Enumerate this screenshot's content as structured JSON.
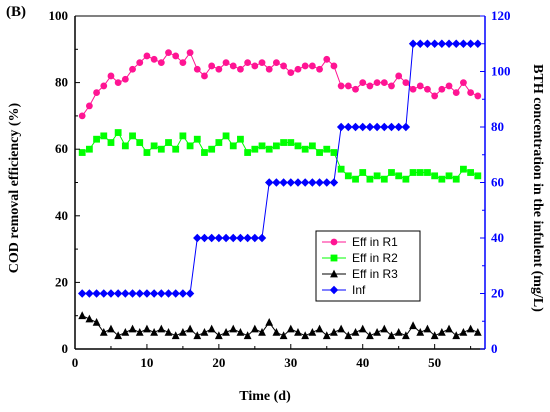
{
  "chart_data": {
    "type": "line",
    "panel_label": "(B)",
    "xlabel": "Time (d)",
    "ylabel_left": "COD removal efficiency (%)",
    "ylabel_right": "BTH concentration in the infulent (mg/L)",
    "xlim": [
      0,
      57
    ],
    "ylim_left": [
      0,
      100
    ],
    "ylim_right": [
      0,
      120
    ],
    "x_ticks": [
      0,
      10,
      20,
      30,
      40,
      50
    ],
    "y_left_ticks": [
      0,
      20,
      40,
      60,
      80,
      100
    ],
    "y_right_ticks": [
      0,
      20,
      40,
      60,
      80,
      100,
      120
    ],
    "grid": false,
    "legend_position": "lower-right",
    "colors": {
      "left_axis": "#000000",
      "right_axis": "#0000ff"
    },
    "series": [
      {
        "name": "Eff in R1",
        "axis": "left",
        "color": "#ff1493",
        "marker": "circle",
        "x": [
          1,
          2,
          3,
          4,
          5,
          6,
          7,
          8,
          9,
          10,
          11,
          12,
          13,
          14,
          15,
          16,
          17,
          18,
          19,
          20,
          21,
          22,
          23,
          24,
          25,
          26,
          27,
          28,
          29,
          30,
          31,
          32,
          33,
          34,
          35,
          36,
          37,
          38,
          39,
          40,
          41,
          42,
          43,
          44,
          45,
          46,
          47,
          48,
          49,
          50,
          51,
          52,
          53,
          54,
          55,
          56
        ],
        "y": [
          70,
          73,
          77,
          79,
          82,
          80,
          81,
          84,
          86,
          88,
          87,
          86,
          89,
          88,
          86,
          89,
          84,
          82,
          85,
          84,
          86,
          85,
          84,
          86,
          85,
          86,
          84,
          86,
          85,
          83,
          84,
          85,
          85,
          84,
          87,
          85,
          79,
          79,
          78,
          80,
          79,
          80,
          80,
          79,
          82,
          80,
          78,
          79,
          78,
          76,
          78,
          79,
          77,
          80,
          77,
          76
        ]
      },
      {
        "name": "Eff in R2",
        "axis": "left",
        "color": "#00ff00",
        "marker": "square",
        "x": [
          1,
          2,
          3,
          4,
          5,
          6,
          7,
          8,
          9,
          10,
          11,
          12,
          13,
          14,
          15,
          16,
          17,
          18,
          19,
          20,
          21,
          22,
          23,
          24,
          25,
          26,
          27,
          28,
          29,
          30,
          31,
          32,
          33,
          34,
          35,
          36,
          37,
          38,
          39,
          40,
          41,
          42,
          43,
          44,
          45,
          46,
          47,
          48,
          49,
          50,
          51,
          52,
          53,
          54,
          55,
          56
        ],
        "y": [
          59,
          60,
          63,
          64,
          62,
          65,
          61,
          64,
          62,
          59,
          61,
          60,
          62,
          60,
          64,
          61,
          63,
          59,
          60,
          62,
          64,
          61,
          63,
          59,
          60,
          61,
          60,
          61,
          62,
          62,
          61,
          60,
          61,
          59,
          60,
          59,
          54,
          52,
          51,
          53,
          51,
          52,
          51,
          53,
          52,
          51,
          53,
          53,
          53,
          52,
          51,
          52,
          51,
          54,
          53,
          52
        ]
      },
      {
        "name": "Eff in R3",
        "axis": "left",
        "color": "#000000",
        "marker": "triangle",
        "x": [
          1,
          2,
          3,
          4,
          5,
          6,
          7,
          8,
          9,
          10,
          11,
          12,
          13,
          14,
          15,
          16,
          17,
          18,
          19,
          20,
          21,
          22,
          23,
          24,
          25,
          26,
          27,
          28,
          29,
          30,
          31,
          32,
          33,
          34,
          35,
          36,
          37,
          38,
          39,
          40,
          41,
          42,
          43,
          44,
          45,
          46,
          47,
          48,
          49,
          50,
          51,
          52,
          53,
          54,
          55,
          56
        ],
        "y": [
          10,
          9,
          8,
          5,
          6,
          4,
          5,
          6,
          5,
          6,
          5,
          6,
          5,
          4,
          5,
          6,
          4,
          5,
          6,
          4,
          5,
          6,
          5,
          4,
          6,
          5,
          8,
          5,
          4,
          6,
          5,
          4,
          5,
          6,
          4,
          5,
          6,
          4,
          5,
          6,
          4,
          5,
          6,
          4,
          5,
          4,
          7,
          5,
          6,
          4,
          5,
          6,
          4,
          5,
          6,
          5
        ]
      },
      {
        "name": "Inf",
        "axis": "right",
        "color": "#0000ff",
        "marker": "diamond",
        "x": [
          1,
          2,
          3,
          4,
          5,
          6,
          7,
          8,
          9,
          10,
          11,
          12,
          13,
          14,
          15,
          16,
          17,
          18,
          19,
          20,
          21,
          22,
          23,
          24,
          25,
          26,
          27,
          28,
          29,
          30,
          31,
          32,
          33,
          34,
          35,
          36,
          37,
          38,
          39,
          40,
          41,
          42,
          43,
          44,
          45,
          46,
          47,
          48,
          49,
          50,
          51,
          52,
          53,
          54,
          55,
          56
        ],
        "y": [
          20,
          20,
          20,
          20,
          20,
          20,
          20,
          20,
          20,
          20,
          20,
          20,
          20,
          20,
          20,
          20,
          40,
          40,
          40,
          40,
          40,
          40,
          40,
          40,
          40,
          40,
          60,
          60,
          60,
          60,
          60,
          60,
          60,
          60,
          60,
          60,
          80,
          80,
          80,
          80,
          80,
          80,
          80,
          80,
          80,
          80,
          110,
          110,
          110,
          110,
          110,
          110,
          110,
          110,
          110,
          110
        ]
      }
    ]
  }
}
